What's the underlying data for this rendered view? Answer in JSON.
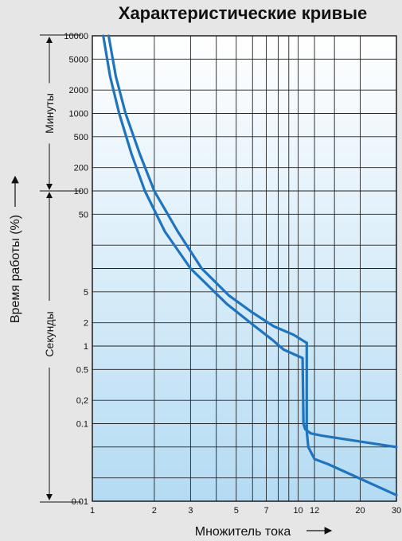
{
  "chart_data": {
    "type": "line",
    "title": "Характеристические кривые",
    "xlabel": "Множитель тока",
    "ylabel": "Время работы  (%)",
    "x_scale": "log",
    "y_scale": "log",
    "xlim": [
      1,
      30
    ],
    "ylim": [
      0.01,
      10000
    ],
    "x_ticks": [
      {
        "value": 1,
        "label": "1"
      },
      {
        "value": 2,
        "label": "2"
      },
      {
        "value": 3,
        "label": "3"
      },
      {
        "value": 5,
        "label": "5"
      },
      {
        "value": 7,
        "label": "7"
      },
      {
        "value": 10,
        "label": "10"
      },
      {
        "value": 12,
        "label": "12"
      },
      {
        "value": 20,
        "label": "20"
      },
      {
        "value": 30,
        "label": "30"
      }
    ],
    "x_gridlines": [
      1,
      2,
      3,
      4,
      5,
      6,
      7,
      8,
      9,
      10,
      12,
      15,
      20,
      30
    ],
    "y_ticks": [
      {
        "value": 10000,
        "label": "10000"
      },
      {
        "value": 5000,
        "label": "5000"
      },
      {
        "value": 2000,
        "label": "2000"
      },
      {
        "value": 1000,
        "label": "1000"
      },
      {
        "value": 500,
        "label": "500"
      },
      {
        "value": 200,
        "label": "200"
      },
      {
        "value": 100,
        "label": "100"
      },
      {
        "value": 50,
        "label": "50"
      },
      {
        "value": 5,
        "label": "5"
      },
      {
        "value": 2,
        "label": "2"
      },
      {
        "value": 1,
        "label": "1"
      },
      {
        "value": 0.5,
        "label": "0.5"
      },
      {
        "value": 0.2,
        "label": "0,2"
      },
      {
        "value": 0.1,
        "label": "0.1"
      },
      {
        "value": 0.01,
        "label": "0.01"
      }
    ],
    "y_gridlines": [
      10000,
      5000,
      2000,
      1000,
      500,
      200,
      100,
      50,
      20,
      10,
      5,
      2,
      1,
      0.5,
      0.2,
      0.1,
      0.05,
      0.02,
      0.01
    ],
    "grid": true,
    "side_labels": {
      "minutes": "Минуты",
      "seconds": "Секунды",
      "minutes_range": [
        100,
        10000
      ],
      "seconds_range": [
        0.01,
        100
      ]
    },
    "series": [
      {
        "color": "#1f74bd",
        "points": [
          [
            1.13,
            10000
          ],
          [
            1.22,
            3000
          ],
          [
            1.35,
            1000
          ],
          [
            1.55,
            300
          ],
          [
            1.8,
            100
          ],
          [
            2.25,
            30
          ],
          [
            3.0,
            10
          ],
          [
            4.5,
            3.5
          ],
          [
            6.0,
            1.9
          ],
          [
            7.5,
            1.2
          ],
          [
            8.5,
            0.9
          ],
          [
            10.5,
            0.7
          ]
        ],
        "points_vertical": [
          [
            10.5,
            0.7
          ],
          [
            10.6,
            0.1
          ],
          [
            10.8,
            0.085
          ],
          [
            11.5,
            0.075
          ],
          [
            13,
            0.07
          ],
          [
            30,
            0.05
          ]
        ]
      },
      {
        "color": "#1f74bd",
        "points": [
          [
            1.2,
            10000
          ],
          [
            1.3,
            3000
          ],
          [
            1.45,
            1000
          ],
          [
            1.7,
            300
          ],
          [
            2.0,
            100
          ],
          [
            2.6,
            30
          ],
          [
            3.4,
            10
          ],
          [
            4.6,
            4.5
          ],
          [
            6.0,
            2.7
          ],
          [
            7.6,
            1.8
          ],
          [
            9.5,
            1.4
          ],
          [
            11,
            1.1
          ]
        ]
      }
    ]
  }
}
